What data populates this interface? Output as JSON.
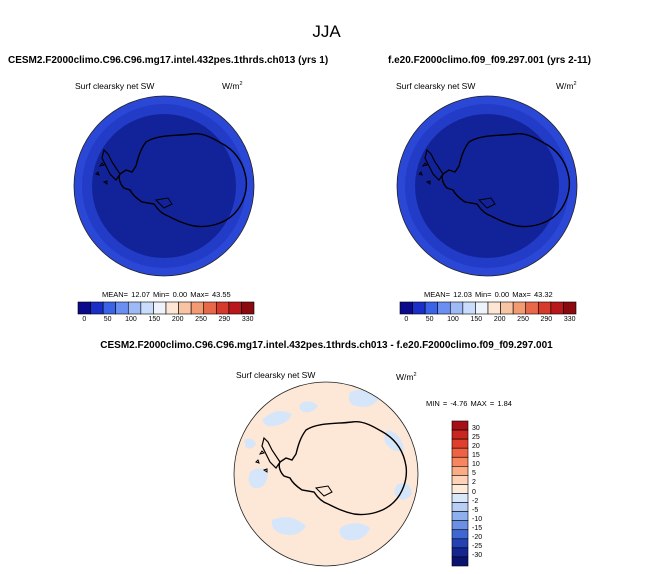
{
  "title": "JJA",
  "panels": [
    {
      "case": "CESM2.F2000climo.C96.C96.mg17.intel.432pes.1thrds.ch013 (yrs 1)",
      "variable": "Surf clearsky net SW",
      "units": "W/m",
      "units_sup": "2",
      "stats": {
        "mean_label": "MEAN=",
        "mean": "12.07",
        "min_label": "Min=",
        "min": "0.00",
        "max_label": "Max=",
        "max": "43.55"
      }
    },
    {
      "case": "f.e20.F2000climo.f09_f09.297.001 (yrs 2-11)",
      "variable": "Surf clearsky net SW",
      "units": "W/m",
      "units_sup": "2",
      "stats": {
        "mean_label": "MEAN=",
        "mean": "12.03",
        "min_label": "Min=",
        "min": "0.00",
        "max_label": "Max=",
        "max": "43.32"
      }
    }
  ],
  "diff": {
    "title": "CESM2.F2000climo.C96.C96.mg17.intel.432pes.1thrds.ch013 - f.e20.F2000climo.f09_f09.297.001",
    "variable": "Surf clearsky net SW",
    "units": "W/m",
    "units_sup": "2",
    "stats": {
      "min_label": "MIN =",
      "min": "-4.76",
      "max_label": "MAX =",
      "max": "1.84"
    }
  },
  "chart_data": [
    {
      "type": "heatmap",
      "projection": "south polar stereographic",
      "title": "Surf clearsky net SW",
      "units": "W/m2",
      "colorbar_levels": [
        "0",
        "50",
        "100",
        "150",
        "200",
        "250",
        "290",
        "330"
      ],
      "colorbar_colors": [
        "#0a0a8a",
        "#1a2fc8",
        "#3a63e6",
        "#6b8ff0",
        "#9dbaf6",
        "#c9dcfb",
        "#eef2fb",
        "#fde6d4",
        "#f9c4a3",
        "#f29a72",
        "#e8684a",
        "#d53a2b",
        "#b8171b",
        "#8a0a10"
      ],
      "mean": 12.07,
      "min": 0.0,
      "max": 43.55
    },
    {
      "type": "heatmap",
      "projection": "south polar stereographic",
      "title": "Surf clearsky net SW",
      "units": "W/m2",
      "colorbar_levels": [
        "0",
        "50",
        "100",
        "150",
        "200",
        "250",
        "290",
        "330"
      ],
      "colorbar_colors": [
        "#0a0a8a",
        "#1a2fc8",
        "#3a63e6",
        "#6b8ff0",
        "#9dbaf6",
        "#c9dcfb",
        "#eef2fb",
        "#fde6d4",
        "#f9c4a3",
        "#f29a72",
        "#e8684a",
        "#d53a2b",
        "#b8171b",
        "#8a0a10"
      ],
      "mean": 12.03,
      "min": 0.0,
      "max": 43.32
    },
    {
      "type": "heatmap",
      "projection": "south polar stereographic",
      "title": "Surf clearsky net SW",
      "units": "W/m2",
      "colorbar_levels": [
        "30",
        "25",
        "20",
        "15",
        "10",
        "5",
        "2",
        "0",
        "-2",
        "-5",
        "-10",
        "-15",
        "-20",
        "-25",
        "-30"
      ],
      "colorbar_colors": [
        "#a50f15",
        "#c8261e",
        "#e0402b",
        "#ef6244",
        "#f7865f",
        "#fbac85",
        "#fdd2b6",
        "#fdeadb",
        "#d9e7fb",
        "#b7cff6",
        "#8fb0ee",
        "#6a8fe4",
        "#4066d4",
        "#2442b4",
        "#142690",
        "#0a1470"
      ],
      "min": -4.76,
      "max": 1.84
    }
  ]
}
